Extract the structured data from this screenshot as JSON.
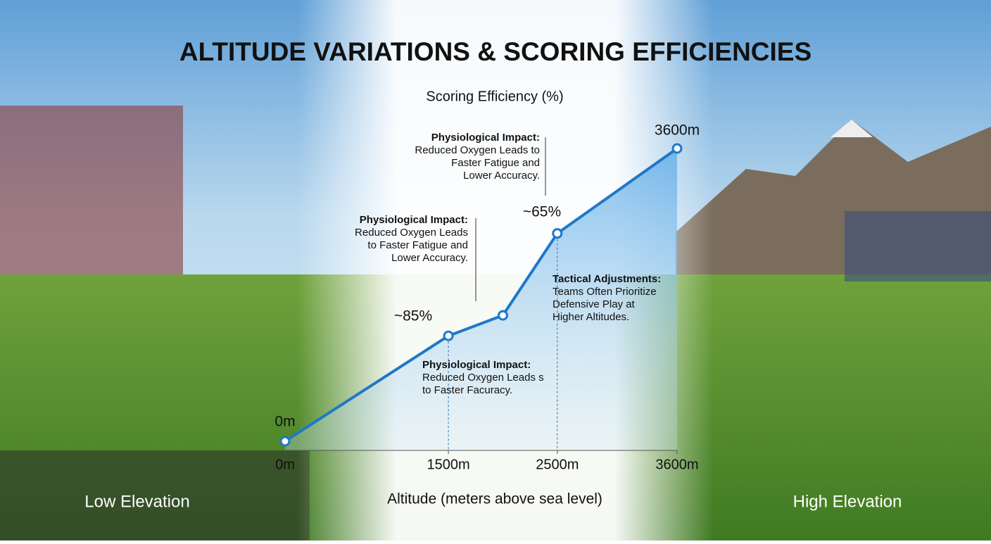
{
  "chart_data": {
    "type": "line",
    "title": "ALTITUDE VARIATIONS & SCORING EFFICIENCIES",
    "subtitle": "Scoring Efficiency (%)",
    "x_label": "Altitude (meters above sea level)",
    "x": [
      0,
      1500,
      2000,
      2500,
      3600
    ],
    "series": [
      {
        "color": "#1f78c8",
        "values": [
          0,
          36,
          43,
          71,
          100
        ]
      }
    ],
    "xlim": [
      0,
      3600
    ],
    "xticks": [
      {
        "value": 0,
        "label": "0m"
      },
      {
        "value": 1500,
        "label": "1500m"
      },
      {
        "value": 2500,
        "label": "2500m"
      },
      {
        "value": 3600,
        "label": "3600m"
      }
    ],
    "ylim": [
      0,
      100
    ],
    "point_labels": [
      "0m",
      "~85%",
      "~65%",
      "3600m"
    ],
    "callouts": [
      [
        "Physiological Impact:",
        "Reduced Oxygen Leads to",
        "Faster Fatigue and",
        "Lower Accuracy."
      ],
      [
        "Physiological Impact:",
        "Reduced Oxygen Leads",
        "to Faster Fatigue and",
        "Lower Accuracy."
      ],
      [
        "Physiological Impact:",
        "Reduced Oxygen Leads s",
        "to Faster Facuracy."
      ],
      [
        "Tactical Adjustments:",
        "Teams Often Prioritize",
        "Defensive Play at",
        "Higher Altitudes."
      ]
    ],
    "region_labels": [
      "Low Elevation",
      "High Elevation"
    ]
  }
}
